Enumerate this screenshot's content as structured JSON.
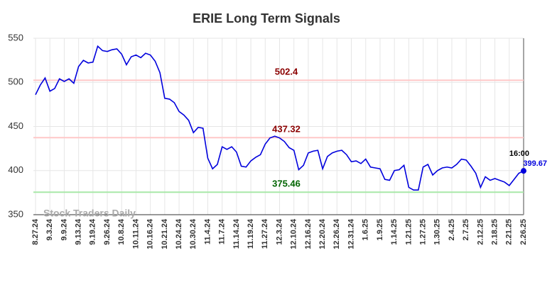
{
  "chart_data": {
    "type": "line",
    "title": "ERIE Long Term Signals",
    "watermark": "Stock Traders Daily",
    "categories": [
      "8.27.24",
      null,
      null,
      "9.3.24",
      null,
      null,
      "9.9.24",
      null,
      null,
      "9.13.24",
      null,
      null,
      "9.19.24",
      null,
      null,
      "9.26.24",
      null,
      null,
      "10.8.24",
      null,
      null,
      "10.11.24",
      null,
      null,
      "10.16.24",
      null,
      null,
      "10.21.24",
      null,
      null,
      "10.24.24",
      null,
      null,
      "10.30.24",
      null,
      null,
      "11.4.24",
      null,
      null,
      "11.7.24",
      null,
      null,
      "11.14.24",
      null,
      null,
      "11.19.24",
      null,
      null,
      "11.27.24",
      null,
      null,
      "12.3.24",
      null,
      null,
      "12.10.24",
      null,
      null,
      "12.16.24",
      null,
      null,
      "12.20.24",
      null,
      null,
      "12.26.24",
      null,
      null,
      "12.31.24",
      null,
      null,
      "1.6.25",
      null,
      null,
      "1.9.25",
      null,
      null,
      "1.14.25",
      null,
      null,
      "1.21.25",
      null,
      null,
      "1.27.25",
      null,
      null,
      "1.30.25",
      null,
      null,
      "2.4.25",
      null,
      null,
      "2.7.25",
      null,
      null,
      "2.12.25",
      null,
      null,
      "2.18.25",
      null,
      null,
      "2.21.25",
      null,
      null,
      "2.26.25"
    ],
    "series": [
      {
        "name": "ERIE",
        "color": "#0000dd",
        "values": [
          486,
          497,
          505,
          490,
          493,
          504,
          501,
          504,
          499,
          518,
          525,
          522,
          523,
          541,
          536,
          535,
          537,
          538,
          532,
          520,
          529,
          531,
          528,
          533,
          531,
          524,
          511,
          482,
          481,
          477,
          467,
          463,
          457,
          443,
          449,
          448,
          414,
          402,
          407,
          427,
          424,
          427,
          421,
          405,
          404,
          411,
          415,
          418,
          430,
          437,
          439,
          437,
          433,
          426,
          423,
          401,
          406,
          420,
          422,
          423,
          402,
          416,
          420,
          422,
          423,
          418,
          410,
          411,
          408,
          413,
          404,
          403,
          402,
          390,
          389,
          400,
          401,
          406,
          381,
          378,
          378,
          404,
          407,
          395,
          400,
          403,
          404,
          403,
          407,
          413,
          412,
          405,
          397,
          381,
          393,
          389,
          391,
          389,
          387,
          383,
          390,
          397,
          399.67
        ]
      }
    ],
    "hlines": [
      {
        "value": 502.4,
        "color": "#ffc8c8",
        "label_color": "#8b0000"
      },
      {
        "value": 437.32,
        "color": "#ffc8c8",
        "label_color": "#8b0000"
      },
      {
        "value": 375.46,
        "color": "#a8e8a8",
        "label_color": "#006400"
      }
    ],
    "last_time": "16:00",
    "ylim": [
      350,
      550
    ],
    "yticks": [
      350,
      400,
      450,
      500,
      550
    ],
    "grid": true
  }
}
